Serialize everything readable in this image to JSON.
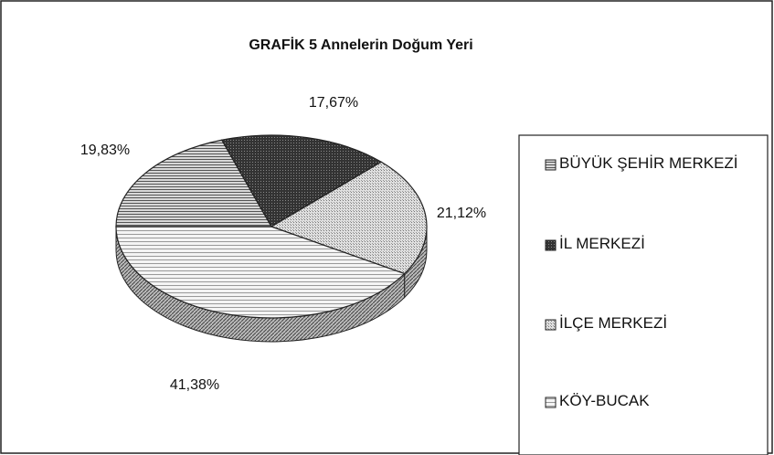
{
  "chart_data": {
    "type": "pie",
    "title": "GRAFİK 5 Annelerin Doğum Yeri",
    "categories": [
      "BÜYÜK ŞEHİR MERKEZİ",
      "İL MERKEZİ",
      "İLÇE MERKEZİ",
      "KÖY-BUCAK"
    ],
    "values": [
      19.83,
      17.67,
      21.12,
      41.38
    ],
    "value_labels": [
      "19,83%",
      "17,67%",
      "21,12%",
      "41,38%"
    ],
    "colors": [
      "#b8b8b8",
      "#3a3a3a",
      "#cfcfcf",
      "#ececec"
    ],
    "legend": "right"
  }
}
